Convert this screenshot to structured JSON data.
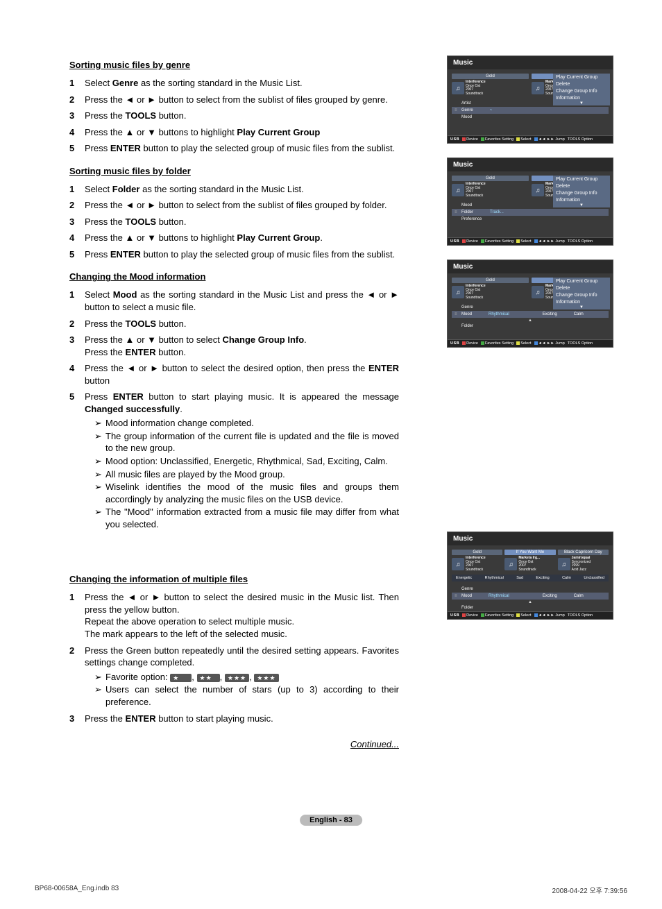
{
  "sections": {
    "genre": {
      "title": "Sorting music files by genre",
      "steps": [
        {
          "n": "1",
          "html": "Select <b>Genre</b> as the sorting standard in the Music List."
        },
        {
          "n": "2",
          "html": "Press the ◄ or ► button to select from the sublist of files grouped by genre."
        },
        {
          "n": "3",
          "html": "Press the <b>TOOLS</b> button."
        },
        {
          "n": "4",
          "html": "Press the ▲ or ▼ buttons  to highlight <b>Play Current Group</b>"
        },
        {
          "n": "5",
          "html": "Press <b>ENTER</b> button to play the selected group of music files from the sublist."
        }
      ]
    },
    "folder": {
      "title": "Sorting music files by folder",
      "steps": [
        {
          "n": "1",
          "html": "Select <b>Folder</b> as the sorting standard in the Music List."
        },
        {
          "n": "2",
          "html": "Press the ◄ or ► button to select from the sublist of files grouped by folder."
        },
        {
          "n": "3",
          "html": "Press the <b>TOOLS</b> button."
        },
        {
          "n": "4",
          "html": "Press the ▲ or ▼ buttons  to highlight <b>Play Current Group</b>."
        },
        {
          "n": "5",
          "html": "Press <b>ENTER</b> button to play the selected group of music files from the sublist."
        }
      ]
    },
    "mood": {
      "title": "Changing the Mood information",
      "steps": [
        {
          "n": "1",
          "html": "Select <b>Mood</b> as the sorting standard in the Music List and press the ◄ or ► button to select a music file."
        },
        {
          "n": "2",
          "html": "Press the <b>TOOLS</b> button."
        },
        {
          "n": "3",
          "html": "Press the ▲ or ▼ button to select <b>Change Group Info</b>.<br>Press the <b>ENTER</b> button."
        },
        {
          "n": "4",
          "html": "Press the ◄ or ► button to select the desired option, then press the <b>ENTER</b> button"
        },
        {
          "n": "5",
          "html": "Press <b>ENTER</b> button to start playing music. It is appeared the message <b>Changed successfully</b>.",
          "sub": [
            "Mood information change completed.",
            "The group information of the current file is updated and the file is moved to the new group.",
            "Mood option: Unclassified, Energetic, Rhythmical, Sad, Exciting, Calm.",
            "All music files are played by the Mood group.",
            "Wiselink identifies the mood of the music files and groups them accordingly by analyzing the music files on the USB device.",
            "The \"Mood\" information extracted from a music file may differ from what you selected."
          ]
        }
      ]
    },
    "multiple": {
      "title": "Changing the information of multiple files",
      "steps": [
        {
          "n": "1",
          "html": "Press the ◄ or ► button to select the desired music in the Music list. Then press the yellow button.<br>Repeat the above operation to select multiple music.<br>The mark appears to the left of the selected music."
        },
        {
          "n": "2",
          "html": "Press the Green button repeatedly until the desired setting appears. Favorites settings change completed.",
          "sub": [
            "Favorite option: <span class='stars-badge'>★ &nbsp; &nbsp;</span>, <span class='stars-badge'>★★ &nbsp;</span>, <span class='stars-badge'>★★★</span>, <span class='stars-badge'>★★★</span>",
            "Users can select the number of stars (up to 3) according to their preference."
          ]
        },
        {
          "n": "3",
          "html": "Press the <b>ENTER</b> button to start playing music."
        }
      ]
    }
  },
  "continued": "Continued...",
  "page_footer": "English - 83",
  "print_footer": {
    "left": "BP68-00658A_Eng.indb   83",
    "right": "2008-04-22   오후 7:39:56"
  },
  "screens": {
    "title": "Music",
    "card1_title": "Gold",
    "card2_title": "If You Want Me",
    "card3_title": "Black Capricorn Day",
    "track1_title": "Interference",
    "track1_sub": "Once Ost\n2007\nSoundtrack",
    "track2_title": "Marketa Irg...",
    "track2_sub": "Once Ost\n2007\nSoundtrack",
    "track3_title": "Jamiroquai",
    "track3_sub": "Syncronized\n1999\nAcid Jazz",
    "menu": [
      "Play Current Group",
      "Delete",
      "Change Group Info",
      "Information"
    ],
    "sort_rows": {
      "genre": {
        "rows": [
          "Artist",
          "Genre",
          "Mood"
        ],
        "active": 1,
        "opts": [
          "~"
        ]
      },
      "folder": {
        "rows": [
          "Mood",
          "Folder",
          "Preference"
        ],
        "active": 1,
        "opts": [
          "Track..."
        ]
      },
      "mood": {
        "rows": [
          "Genre",
          "Mood",
          "Folder"
        ],
        "active": 1,
        "opts": [
          "Rhythmical",
          "",
          "Exciting",
          "Calm"
        ]
      },
      "multi": {
        "rows": [
          "Genre",
          "Mood",
          "Folder"
        ],
        "active": 1,
        "opts": [
          "Rhythmical",
          "",
          "Exciting",
          "Calm"
        ]
      }
    },
    "mood_bar": [
      "Energetic",
      "Rhythmical",
      "Sad",
      "Exciting",
      "Calm",
      "Unclassified"
    ],
    "bottom": {
      "usb": "USB",
      "items": [
        "Device",
        "Favorites Setting",
        "Select",
        "◄◄ ►► Jump",
        "TOOLS Option"
      ]
    }
  }
}
